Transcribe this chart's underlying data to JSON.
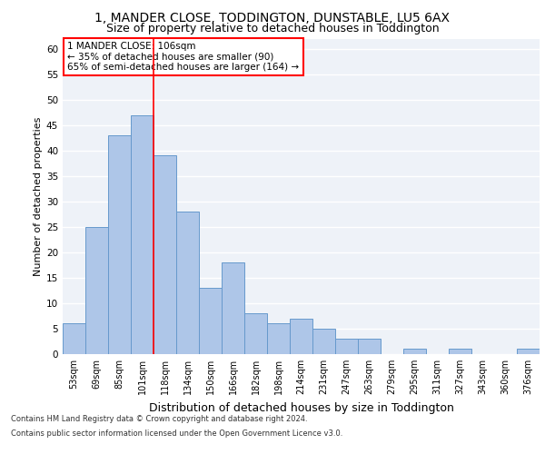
{
  "title_line1": "1, MANDER CLOSE, TODDINGTON, DUNSTABLE, LU5 6AX",
  "title_line2": "Size of property relative to detached houses in Toddington",
  "xlabel": "Distribution of detached houses by size in Toddington",
  "ylabel": "Number of detached properties",
  "categories": [
    "53sqm",
    "69sqm",
    "85sqm",
    "101sqm",
    "118sqm",
    "134sqm",
    "150sqm",
    "166sqm",
    "182sqm",
    "198sqm",
    "214sqm",
    "231sqm",
    "247sqm",
    "263sqm",
    "279sqm",
    "295sqm",
    "311sqm",
    "327sqm",
    "343sqm",
    "360sqm",
    "376sqm"
  ],
  "values": [
    6,
    25,
    43,
    47,
    39,
    28,
    13,
    18,
    8,
    6,
    7,
    5,
    3,
    3,
    0,
    1,
    0,
    1,
    0,
    0,
    1
  ],
  "bar_color": "#aec6e8",
  "bar_edge_color": "#6699cc",
  "ylim": [
    0,
    62
  ],
  "yticks": [
    0,
    5,
    10,
    15,
    20,
    25,
    30,
    35,
    40,
    45,
    50,
    55,
    60
  ],
  "annotation_text_line1": "1 MANDER CLOSE: 106sqm",
  "annotation_text_line2": "← 35% of detached houses are smaller (90)",
  "annotation_text_line3": "65% of semi-detached houses are larger (164) →",
  "red_line_x": 3.5,
  "footer_line1": "Contains HM Land Registry data © Crown copyright and database right 2024.",
  "footer_line2": "Contains public sector information licensed under the Open Government Licence v3.0.",
  "background_color": "#eef2f8",
  "grid_color": "#ffffff",
  "annotation_fontsize": 7.5,
  "title_fontsize1": 10,
  "title_fontsize2": 9,
  "ylabel_fontsize": 8,
  "xlabel_fontsize": 9,
  "footer_fontsize": 6
}
